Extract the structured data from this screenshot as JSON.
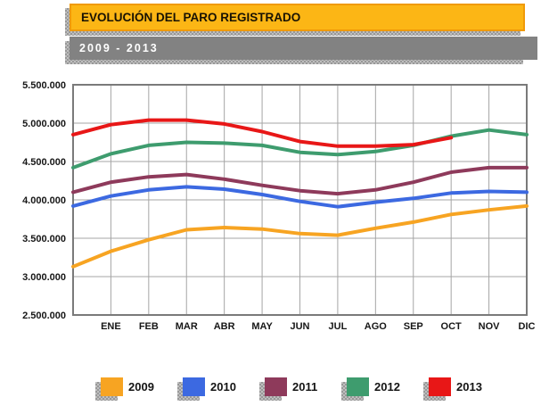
{
  "banner": {
    "title": "EVOLUCIÓN DEL PARO REGISTRADO",
    "period": "2009 - 2013"
  },
  "colors": {
    "banner_yellow": "#FCB615",
    "banner_yellow_border": "#F09A08",
    "banner_gray": "#828282",
    "plot_border": "#7A7A7A",
    "gridline": "#A5A5A5",
    "axis_text": "#161616"
  },
  "chart_data": {
    "type": "line",
    "title": "EVOLUCIÓN DEL PARO REGISTRADO",
    "subtitle": "2009 - 2013",
    "categories": [
      "ENE",
      "FEB",
      "MAR",
      "ABR",
      "MAY",
      "JUN",
      "JUL",
      "AGO",
      "SEP",
      "OCT",
      "NOV",
      "DIC"
    ],
    "x_axis_note": "left plot edge = DIC of previous year; each series starts there",
    "ylim": [
      2500000,
      5500000
    ],
    "y_tick_step": 500000,
    "y_tick_labels_top_to_bottom": [
      "5.500.000",
      "5.000.000",
      "4.500.000",
      "4.000.000",
      "3.500.000",
      "3.000.000",
      "2.500.000"
    ],
    "grid": true,
    "legend_position": "bottom",
    "series": [
      {
        "name": "2009",
        "color": "#F7A422",
        "dec_prev_year": 3130000,
        "values": [
          3330000,
          3480000,
          3610000,
          3640000,
          3620000,
          3560000,
          3540000,
          3630000,
          3710000,
          3810000,
          3870000,
          3920000
        ]
      },
      {
        "name": "2010",
        "color": "#3C69E1",
        "dec_prev_year": 3920000,
        "values": [
          4050000,
          4130000,
          4170000,
          4140000,
          4070000,
          3980000,
          3910000,
          3970000,
          4020000,
          4090000,
          4110000,
          4100000
        ]
      },
      {
        "name": "2011",
        "color": "#8E3A5B",
        "dec_prev_year": 4100000,
        "values": [
          4230000,
          4300000,
          4330000,
          4270000,
          4190000,
          4120000,
          4080000,
          4130000,
          4230000,
          4360000,
          4420000,
          4420000
        ]
      },
      {
        "name": "2012",
        "color": "#3E9C6E",
        "dec_prev_year": 4420000,
        "values": [
          4600000,
          4710000,
          4750000,
          4740000,
          4710000,
          4620000,
          4590000,
          4630000,
          4710000,
          4830000,
          4910000,
          4850000
        ]
      },
      {
        "name": "2013",
        "color": "#E81717",
        "dec_prev_year": 4850000,
        "values": [
          4980000,
          5040000,
          5040000,
          4990000,
          4890000,
          4760000,
          4700000,
          4700000,
          4720000,
          4810000,
          null,
          null
        ]
      }
    ]
  }
}
